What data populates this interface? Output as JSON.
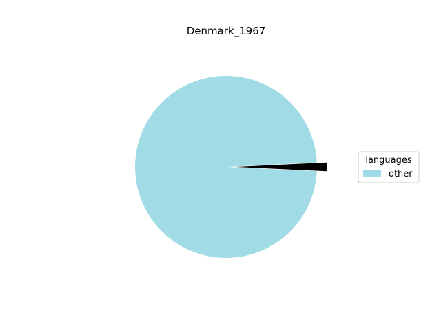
{
  "chart_data": {
    "type": "pie",
    "title": "Denmark_1967",
    "slices": [
      {
        "label": "other",
        "value": 98.5,
        "color": "#a0dbe6"
      },
      {
        "label": "",
        "value": 1.5,
        "color": "#000000",
        "exploded": true
      }
    ],
    "legend": {
      "title": "languages",
      "placement": "right",
      "entries": [
        {
          "label": "other",
          "color": "#a0dbe6"
        }
      ]
    }
  }
}
